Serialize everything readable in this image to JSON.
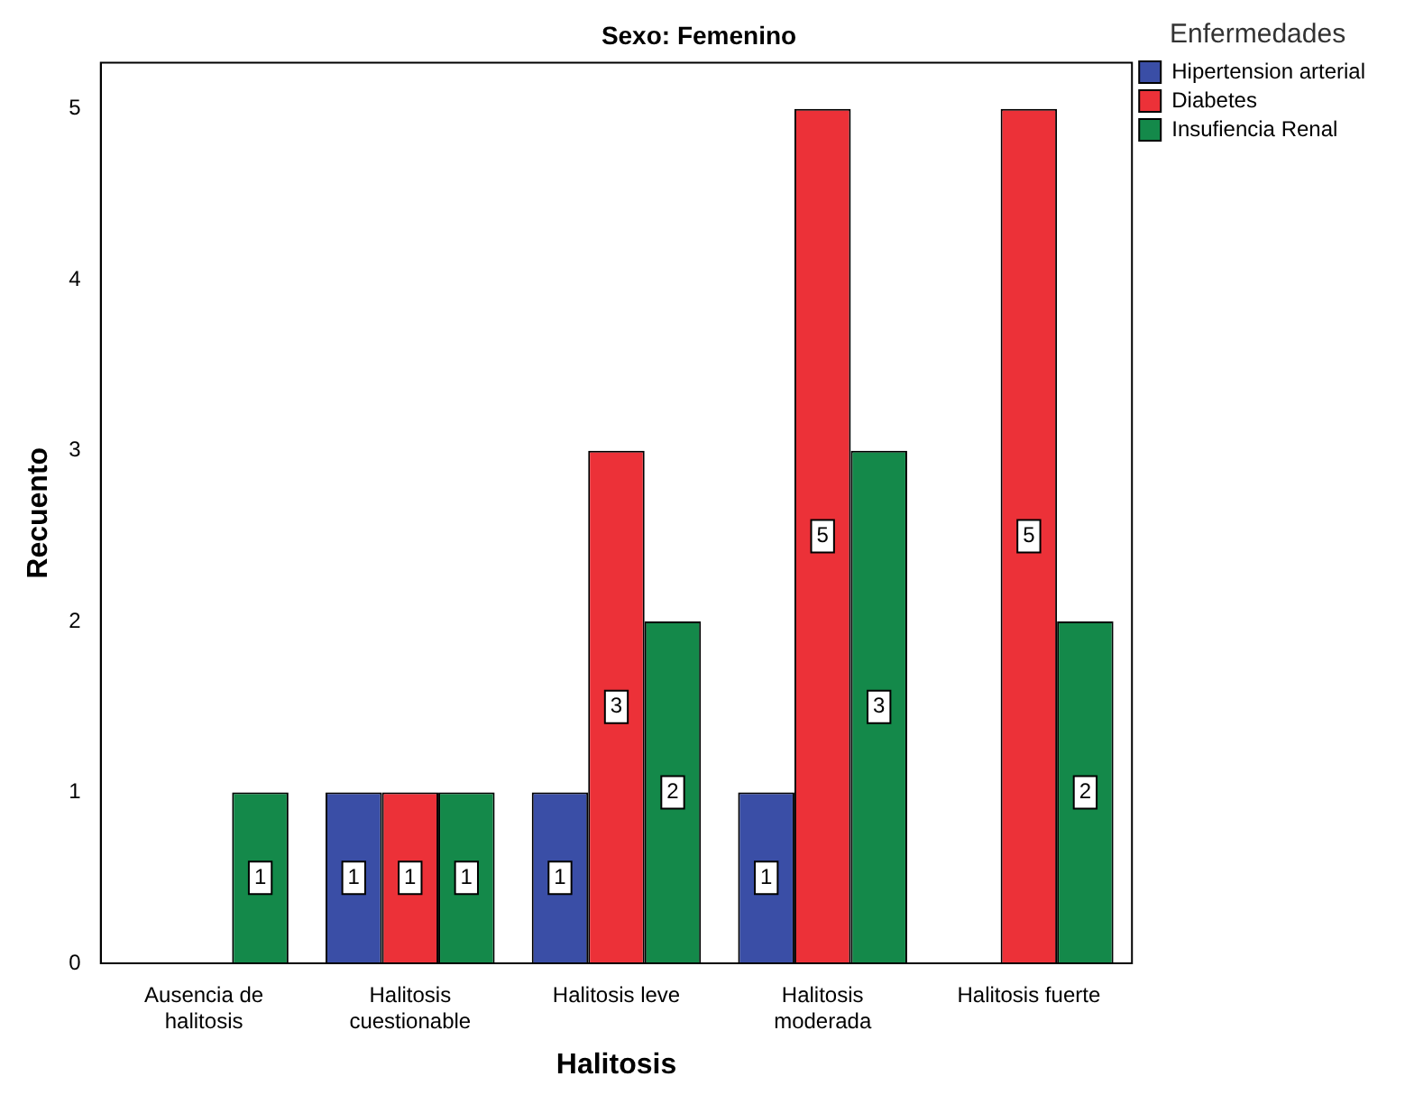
{
  "chart_data": {
    "type": "bar",
    "title": "Sexo: Femenino",
    "xlabel": "Halitosis",
    "ylabel": "Recuento",
    "legend_title": "Enfermedades",
    "categories": [
      "Ausencia de halitosis",
      "Halitosis cuestionable",
      "Halitosis leve",
      "Halitosis moderada",
      "Halitosis fuerte"
    ],
    "series": [
      {
        "name": "Hipertension arterial",
        "color": "#3a4ea6",
        "values": [
          null,
          1,
          1,
          1,
          null
        ]
      },
      {
        "name": "Diabetes",
        "color": "#ec3138",
        "values": [
          null,
          1,
          3,
          5,
          5
        ]
      },
      {
        "name": "Insufiencia Renal",
        "color": "#14894a",
        "values": [
          1,
          1,
          2,
          3,
          2
        ]
      }
    ],
    "ylim": [
      0,
      5.27
    ],
    "yticks": [
      0,
      1,
      2,
      3,
      4,
      5
    ],
    "grid": false,
    "legend": "top right",
    "data_labels": true
  }
}
